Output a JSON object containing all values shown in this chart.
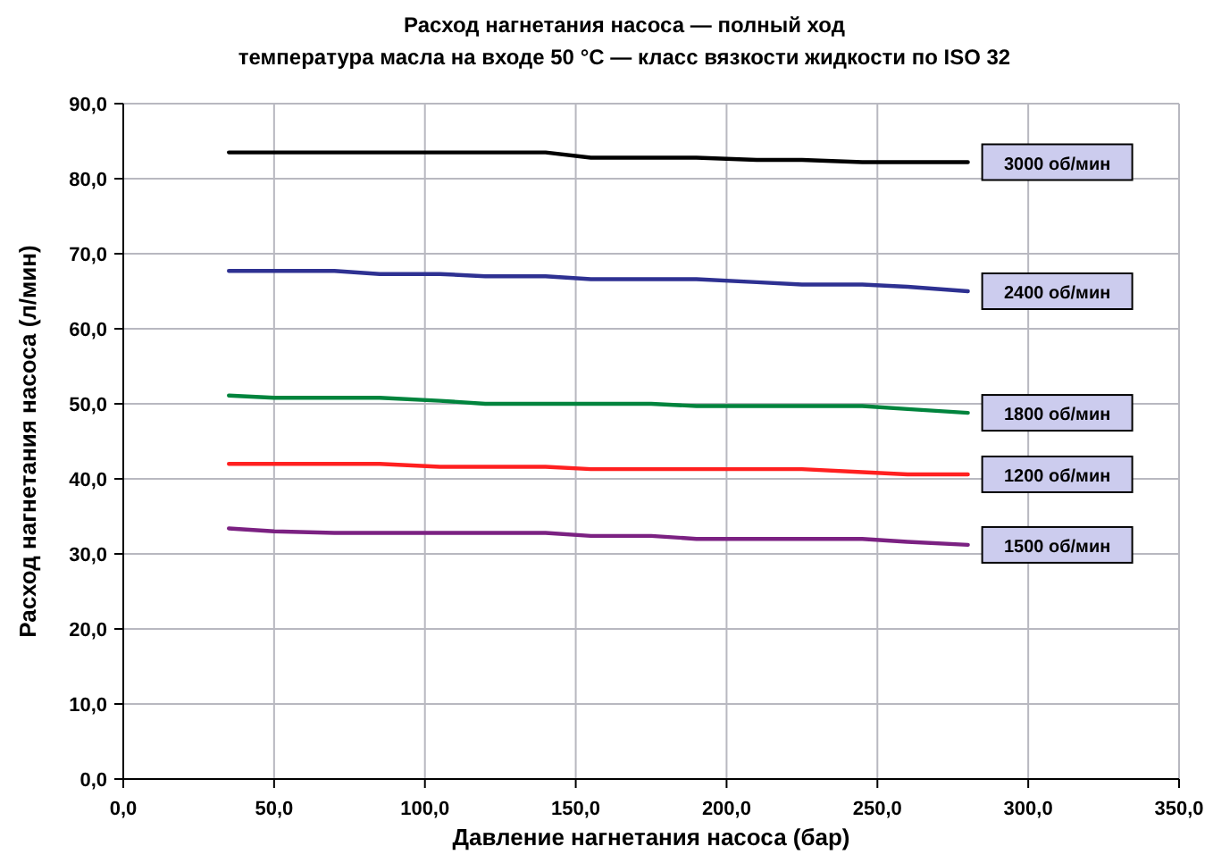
{
  "chart_data": {
    "type": "line",
    "title": "Расход нагнетания насоса — полный ход",
    "subtitle": "температура масла на входе 50 °C — класс вязкости жидкости по ISO 32",
    "xlabel": "Давление нагнетания насоса (бар)",
    "ylabel": "Расход нагнетания насоса (л/мин)",
    "x": [
      35,
      50,
      70,
      85,
      105,
      120,
      140,
      155,
      175,
      190,
      210,
      225,
      245,
      260,
      280
    ],
    "series": [
      {
        "name": "3000 об/мин",
        "color": "#000000",
        "values": [
          83.5,
          83.5,
          83.5,
          83.5,
          83.5,
          83.5,
          83.5,
          82.8,
          82.8,
          82.8,
          82.5,
          82.5,
          82.2,
          82.2,
          82.2
        ]
      },
      {
        "name": "2400 об/мин",
        "color": "#2e3192",
        "values": [
          67.7,
          67.7,
          67.7,
          67.3,
          67.3,
          67.0,
          67.0,
          66.6,
          66.6,
          66.6,
          66.2,
          65.9,
          65.9,
          65.6,
          65.0
        ]
      },
      {
        "name": "1800 об/мин",
        "color": "#00843d",
        "values": [
          51.1,
          50.8,
          50.8,
          50.8,
          50.4,
          50.0,
          50.0,
          50.0,
          50.0,
          49.7,
          49.7,
          49.7,
          49.7,
          49.3,
          48.8
        ]
      },
      {
        "name": "1200 об/мин",
        "color": "#ff2020",
        "values": [
          42.0,
          42.0,
          42.0,
          42.0,
          41.6,
          41.6,
          41.6,
          41.3,
          41.3,
          41.3,
          41.3,
          41.3,
          40.9,
          40.6,
          40.6
        ]
      },
      {
        "name": "1500 об/мин",
        "color": "#7b2182",
        "values": [
          33.4,
          33.0,
          32.8,
          32.8,
          32.8,
          32.8,
          32.8,
          32.4,
          32.4,
          32.0,
          32.0,
          32.0,
          32.0,
          31.6,
          31.2
        ]
      }
    ],
    "xlim": [
      0,
      350
    ],
    "ylim": [
      0,
      90
    ],
    "xticks": [
      {
        "value": 0,
        "label": "0,0"
      },
      {
        "value": 50,
        "label": "50,0"
      },
      {
        "value": 100,
        "label": "100,0"
      },
      {
        "value": 150,
        "label": "150,0"
      },
      {
        "value": 200,
        "label": "200,0"
      },
      {
        "value": 250,
        "label": "250,0"
      },
      {
        "value": 300,
        "label": "300,0"
      },
      {
        "value": 350,
        "label": "350,0"
      }
    ],
    "yticks": [
      {
        "value": 0,
        "label": "0,0"
      },
      {
        "value": 10,
        "label": "10,0"
      },
      {
        "value": 20,
        "label": "20,0"
      },
      {
        "value": 30,
        "label": "30,0"
      },
      {
        "value": 40,
        "label": "40,0"
      },
      {
        "value": 50,
        "label": "50,0"
      },
      {
        "value": 60,
        "label": "60,0"
      },
      {
        "value": 70,
        "label": "70,0"
      },
      {
        "value": 80,
        "label": "80,0"
      },
      {
        "value": 90,
        "label": "90,0"
      }
    ],
    "grid": true
  }
}
